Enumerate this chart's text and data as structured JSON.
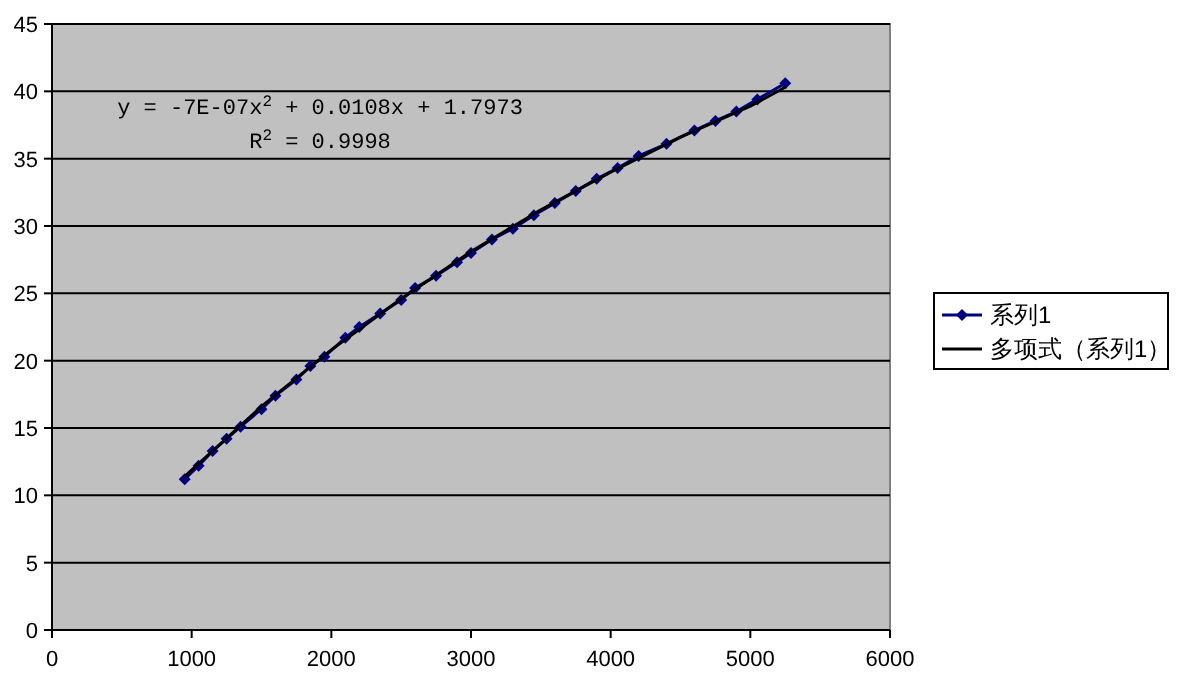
{
  "chart_data": {
    "type": "line",
    "annotations": [
      "y = -7E-07x$^{2}$ + 0.0108x + 1.7973",
      "R$^{2}$ = 0.9998"
    ],
    "xlim": [
      0,
      6000
    ],
    "xticks": [
      0,
      1000,
      2000,
      3000,
      4000,
      5000,
      6000
    ],
    "ylim": [
      0,
      45
    ],
    "yticks": [
      0,
      5,
      10,
      15,
      20,
      25,
      30,
      35,
      40,
      45
    ],
    "grid": "y",
    "legend": "right",
    "series": [
      {
        "name": "系列1",
        "color": "#000080",
        "marker": "diamond",
        "x": [
          950,
          1050,
          1150,
          1250,
          1350,
          1500,
          1600,
          1750,
          1850,
          1950,
          2100,
          2200,
          2350,
          2500,
          2600,
          2750,
          2900,
          3000,
          3150,
          3300,
          3450,
          3600,
          3750,
          3900,
          4050,
          4200,
          4400,
          4600,
          4750,
          4900,
          5050,
          5250
        ],
        "values": [
          11.2,
          12.2,
          13.3,
          14.2,
          15.1,
          16.4,
          17.4,
          18.6,
          19.6,
          20.3,
          21.7,
          22.5,
          23.5,
          24.5,
          25.4,
          26.3,
          27.3,
          28.0,
          29.0,
          29.8,
          30.8,
          31.7,
          32.6,
          33.5,
          34.3,
          35.2,
          36.1,
          37.1,
          37.8,
          38.5,
          39.4,
          40.6
        ]
      },
      {
        "name": "多项式（系列1）",
        "color": "#000000",
        "marker": "none",
        "x": [
          950,
          1500,
          2000,
          2500,
          3000,
          3500,
          4000,
          4500,
          5000,
          5250
        ],
        "values": [
          11.4,
          16.6,
          20.8,
          24.6,
          28.1,
          31.2,
          34.0,
          36.6,
          38.9,
          40.3
        ]
      }
    ]
  }
}
